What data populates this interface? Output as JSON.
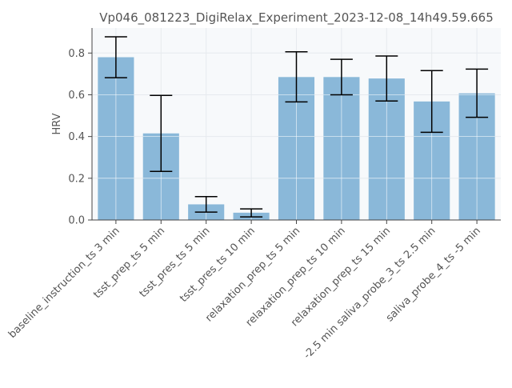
{
  "chart_data": {
    "type": "bar",
    "title": "Vp046_081223_DigiRelax_Experiment_2023-12-08_14h49.59.665",
    "xlabel": "",
    "ylabel": "HRV",
    "ylim": [
      0,
      0.92
    ],
    "yticks": [
      0.0,
      0.2,
      0.4,
      0.6,
      0.8
    ],
    "ytick_labels": [
      "0.0",
      "0.2",
      "0.4",
      "0.6",
      "0.8"
    ],
    "grid": true,
    "categories": [
      "baseline_instruction_ts 3 min",
      "tsst_prep_ts 5 min",
      "tsst_pres_ts 5 min",
      "tsst_pres_ts 10 min",
      "relaxation_prep_ts 5 min",
      "relaxation_prep_ts 10 min",
      "relaxation_prep_ts 15 min",
      "-2.5 min saliva_probe_3_ts 2.5 min",
      "saliva_probe_4_ts -5 min"
    ],
    "values": [
      0.78,
      0.415,
      0.075,
      0.035,
      0.685,
      0.685,
      0.678,
      0.568,
      0.607
    ],
    "error_low": [
      0.682,
      0.233,
      0.038,
      0.015,
      0.566,
      0.6,
      0.57,
      0.42,
      0.492
    ],
    "error_high": [
      0.878,
      0.597,
      0.112,
      0.053,
      0.806,
      0.77,
      0.786,
      0.716,
      0.723
    ],
    "colors": {
      "bar": "#8ab8d9",
      "plot_background": "#f7f9fb",
      "grid": "#e6eaee",
      "axis": "#444444",
      "text": "#555555",
      "errorbar": "#000000"
    }
  }
}
